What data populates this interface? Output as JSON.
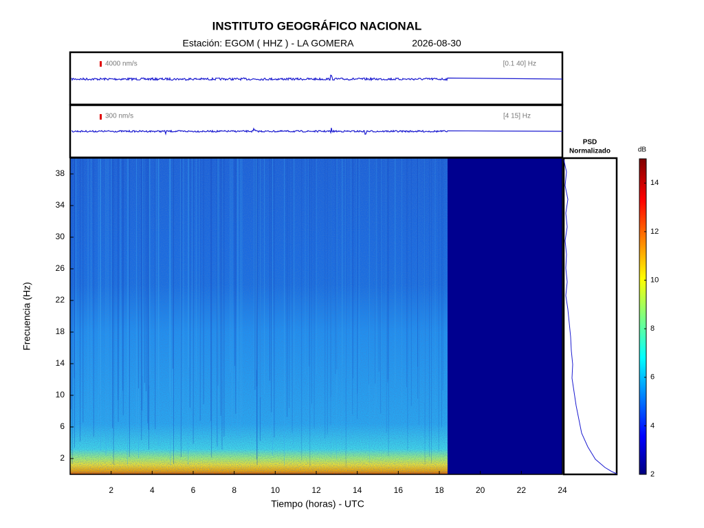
{
  "header": {
    "title": "INSTITUTO GEOGRÁFICO NACIONAL",
    "station": "Estación:  EGOM ( HHZ ) - LA GOMERA",
    "date": "2026-08-30"
  },
  "chart_data": [
    {
      "type": "seismogram",
      "scale_label": "4000 nm/s",
      "band_label": "[0.1 40] Hz",
      "color": "#1a1ad0"
    },
    {
      "type": "seismogram",
      "scale_label": "300 nm/s",
      "band_label": "[4 15] Hz",
      "color": "#1a1ad0"
    },
    {
      "type": "spectrogram",
      "x_label": "Tiempo (horas) - UTC",
      "y_label": "Frecuencia  (Hz)",
      "xlim": [
        0,
        24
      ],
      "xticks": [
        2,
        4,
        6,
        8,
        10,
        12,
        14,
        16,
        18,
        20,
        22,
        24
      ],
      "ylim": [
        0,
        40
      ],
      "yticks": [
        2,
        6,
        10,
        14,
        18,
        22,
        26,
        30,
        34,
        38
      ]
    },
    {
      "type": "psd",
      "title": "PSD",
      "subtitle": "Normalizado",
      "color": "#1a1ad0"
    },
    {
      "type": "colorbar",
      "unit": "dB",
      "ylim": [
        2,
        15
      ],
      "yticks": [
        2,
        4,
        6,
        8,
        10,
        12,
        14
      ]
    }
  ]
}
